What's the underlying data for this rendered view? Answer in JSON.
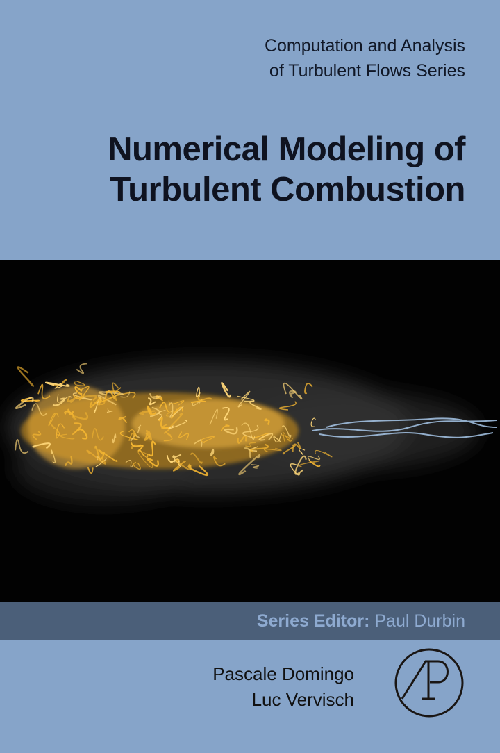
{
  "series": {
    "line1": "Computation and Analysis",
    "line2": "of Turbulent Flows Series"
  },
  "title": {
    "line1": "Numerical Modeling of",
    "line2": "Turbulent Combustion"
  },
  "cover_art": {
    "description_icon": "turbulent-flame-simulation",
    "flame_color": "#f2b431",
    "jet_color": "#9fc3e6"
  },
  "series_editor": {
    "label": "Series Editor:",
    "name": "Paul Durbin"
  },
  "authors": [
    "Pascale Domingo",
    "Luc Vervisch"
  ],
  "publisher_logo": {
    "text": "AP"
  },
  "colors": {
    "background": "#86a4c9",
    "band": "#4b5f79",
    "band_text": "#8eaad0"
  }
}
